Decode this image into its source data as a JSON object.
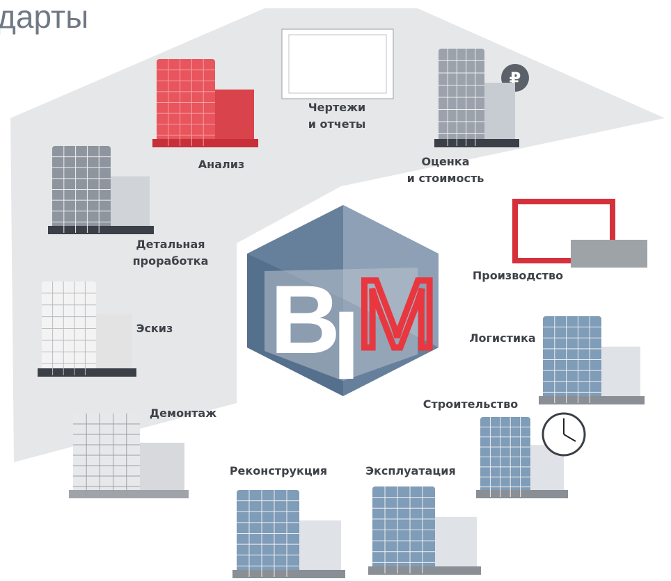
{
  "title": "дарты",
  "logo": {
    "letters": [
      "B",
      "I",
      "M"
    ]
  },
  "stages": [
    {
      "label": [
        "Чертежи",
        "и отчеты"
      ]
    },
    {
      "label": [
        "Анализ"
      ]
    },
    {
      "label": [
        "Оценка",
        "и стоимость"
      ]
    },
    {
      "label": [
        "Детальная",
        "проработка"
      ]
    },
    {
      "label": [
        "Эскиз"
      ]
    },
    {
      "label": [
        "Производство"
      ]
    },
    {
      "label": [
        "Логистика"
      ]
    },
    {
      "label": [
        "Строительство"
      ]
    },
    {
      "label": [
        "Демонтаж"
      ]
    },
    {
      "label": [
        "Реконструкция"
      ]
    },
    {
      "label": [
        "Эксплуатация"
      ]
    }
  ],
  "price_icon": "₽"
}
